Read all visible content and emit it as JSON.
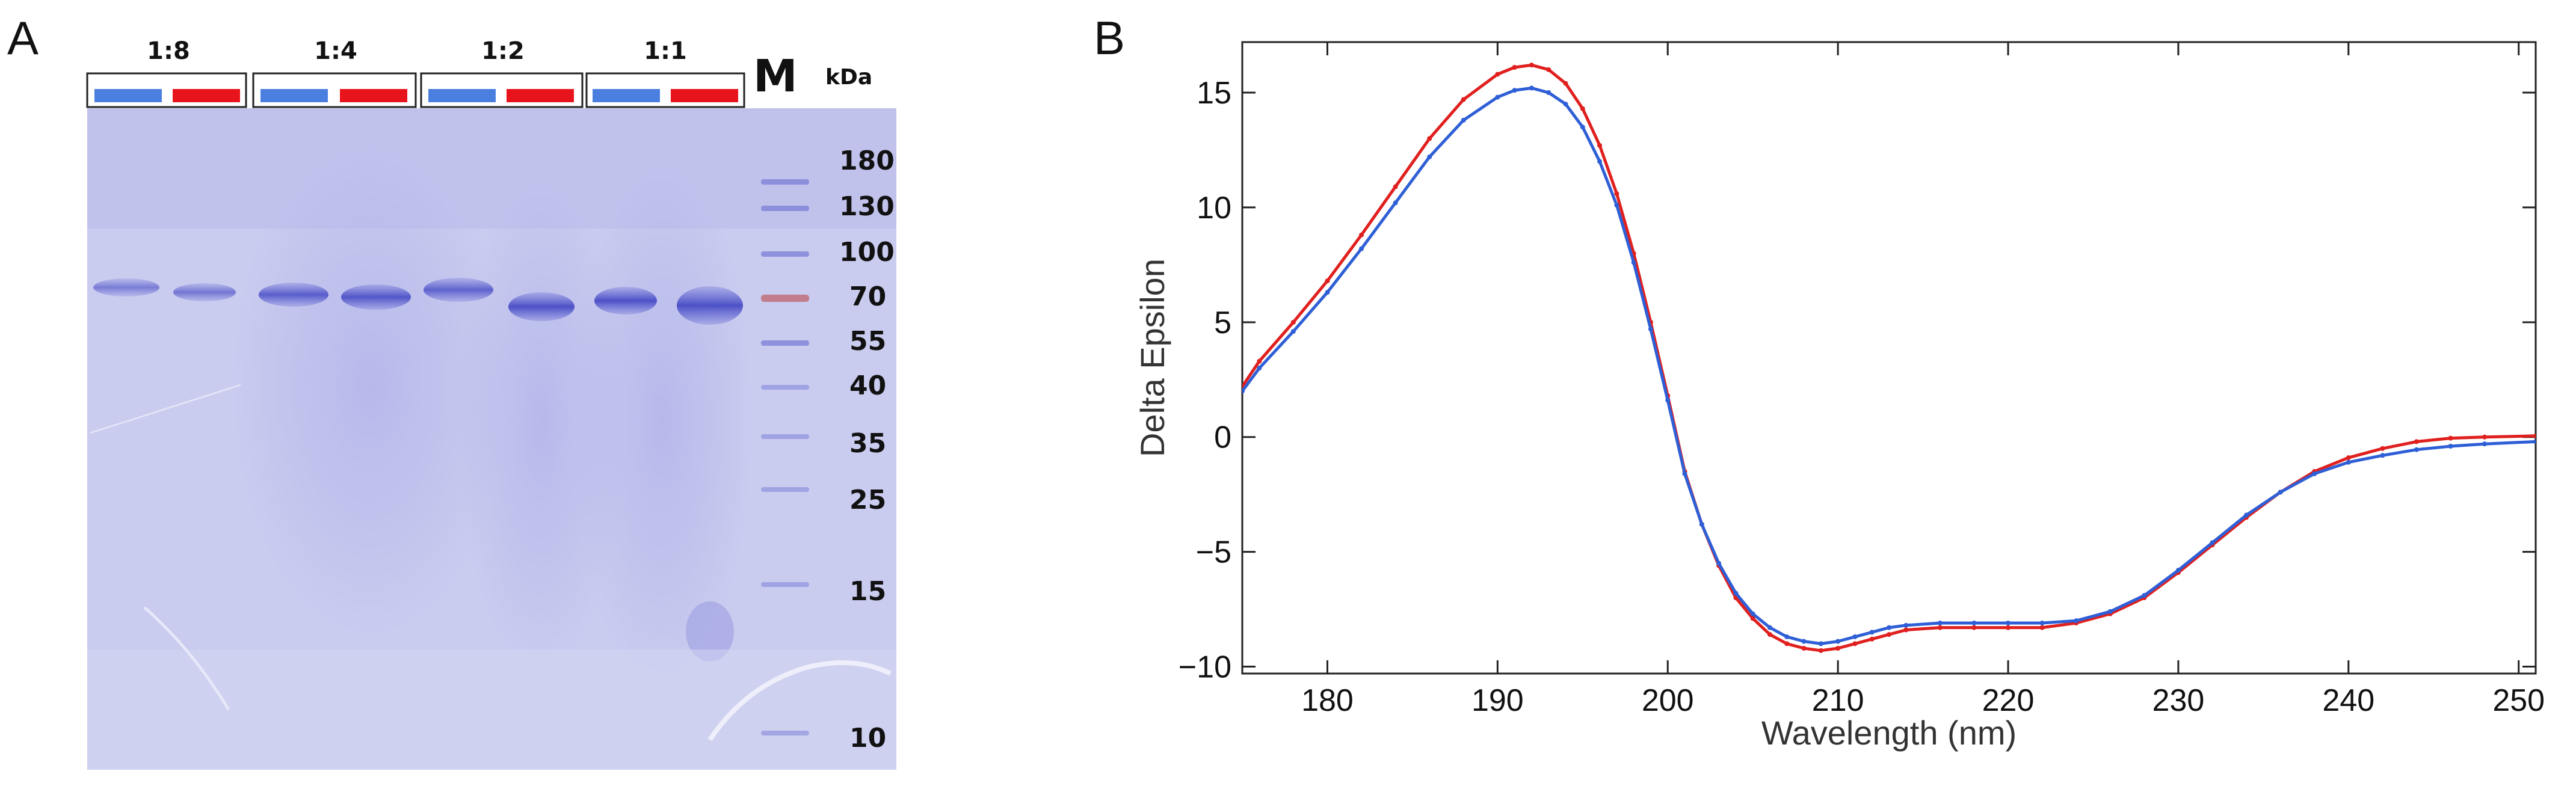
{
  "figure": {
    "panel_a": {
      "letter": "A",
      "ratios": [
        "1:8",
        "1:4",
        "1:2",
        "1:1"
      ],
      "marker_label": "M",
      "unit": "kDa",
      "marker_weights": [
        "180",
        "130",
        "100",
        "70",
        "55",
        "40",
        "35",
        "25",
        "15",
        "10"
      ],
      "colors": {
        "blue_condition": "#4a7fe0",
        "red_condition": "#e8141c",
        "gel": "#c7c9ee"
      }
    },
    "panel_b": {
      "letter": "B"
    }
  },
  "chart_data": {
    "type": "line",
    "title": "",
    "xlabel": "Wavelength (nm)",
    "ylabel": "Delta Epsilon",
    "xlim": [
      175,
      251
    ],
    "ylim": [
      -10.3,
      17.2
    ],
    "xticks": [
      180,
      190,
      200,
      210,
      220,
      230,
      240,
      250
    ],
    "yticks": [
      15,
      10,
      5,
      0,
      -5,
      -10
    ],
    "ytick_labels": [
      "15",
      "10",
      "5",
      "0",
      "−5",
      "−10"
    ],
    "grid": false,
    "series": [
      {
        "name": "red",
        "color": "#e0201e",
        "x": [
          175,
          176,
          178,
          180,
          182,
          184,
          186,
          188,
          190,
          191,
          192,
          193,
          194,
          195,
          196,
          197,
          198,
          199,
          200,
          201,
          202,
          203,
          204,
          205,
          206,
          207,
          208,
          209,
          210,
          211,
          212,
          213,
          214,
          216,
          218,
          220,
          222,
          224,
          226,
          228,
          230,
          232,
          234,
          236,
          238,
          240,
          242,
          244,
          246,
          248,
          251
        ],
        "y": [
          2.2,
          3.3,
          5.0,
          6.8,
          8.8,
          10.9,
          13.0,
          14.7,
          15.8,
          16.1,
          16.2,
          16.0,
          15.4,
          14.3,
          12.7,
          10.6,
          8.0,
          5.0,
          1.8,
          -1.5,
          -3.8,
          -5.6,
          -7.0,
          -7.9,
          -8.6,
          -9.0,
          -9.2,
          -9.3,
          -9.2,
          -9.0,
          -8.8,
          -8.6,
          -8.4,
          -8.3,
          -8.3,
          -8.3,
          -8.3,
          -8.1,
          -7.7,
          -7.0,
          -5.9,
          -4.7,
          -3.5,
          -2.4,
          -1.5,
          -0.9,
          -0.5,
          -0.2,
          -0.05,
          0.0,
          0.05
        ]
      },
      {
        "name": "blue",
        "color": "#2f5fd6",
        "x": [
          175,
          176,
          178,
          180,
          182,
          184,
          186,
          188,
          190,
          191,
          192,
          193,
          194,
          195,
          196,
          197,
          198,
          199,
          200,
          201,
          202,
          203,
          204,
          205,
          206,
          207,
          208,
          209,
          210,
          211,
          212,
          213,
          214,
          216,
          218,
          220,
          222,
          224,
          226,
          228,
          230,
          232,
          234,
          236,
          238,
          240,
          242,
          244,
          246,
          248,
          251
        ],
        "y": [
          2.0,
          3.0,
          4.6,
          6.3,
          8.2,
          10.2,
          12.2,
          13.8,
          14.8,
          15.1,
          15.2,
          15.0,
          14.5,
          13.5,
          12.0,
          10.1,
          7.6,
          4.7,
          1.6,
          -1.6,
          -3.8,
          -5.5,
          -6.8,
          -7.7,
          -8.3,
          -8.7,
          -8.9,
          -9.0,
          -8.9,
          -8.7,
          -8.5,
          -8.3,
          -8.2,
          -8.1,
          -8.1,
          -8.1,
          -8.1,
          -8.0,
          -7.6,
          -6.9,
          -5.8,
          -4.6,
          -3.4,
          -2.4,
          -1.6,
          -1.1,
          -0.8,
          -0.55,
          -0.4,
          -0.3,
          -0.2
        ]
      }
    ]
  }
}
